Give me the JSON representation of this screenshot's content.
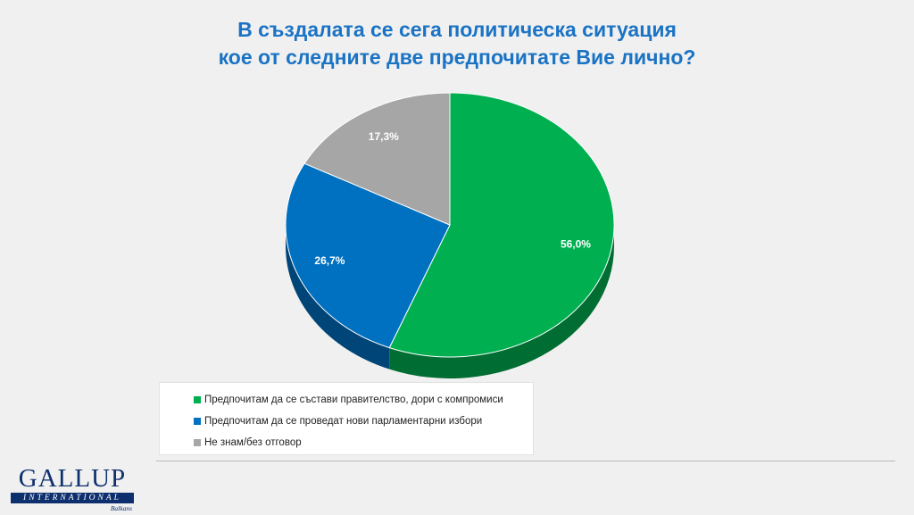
{
  "title": {
    "line1": "В създалата се сега политическа ситуация",
    "line2": "кое от следните две предпочитате Вие лично?"
  },
  "chart_data": {
    "type": "pie",
    "style": "3d",
    "slices": [
      {
        "label": "Предпочитам да се състави правителство, дори с компромиси",
        "value": 56.0,
        "value_label": "56,0%",
        "color": "#00b050"
      },
      {
        "label": "Предпочитам да се проведат нови парламентарни избори",
        "value": 26.7,
        "value_label": "26,7%",
        "color": "#0070c0"
      },
      {
        "label": "Не знам/без отговор",
        "value": 17.3,
        "value_label": "17,3%",
        "color": "#a6a6a6"
      }
    ],
    "legend_position": "bottom"
  },
  "logo": {
    "word": "GALLUP",
    "band": "INTERNATIONAL",
    "sub": "Balkans"
  }
}
